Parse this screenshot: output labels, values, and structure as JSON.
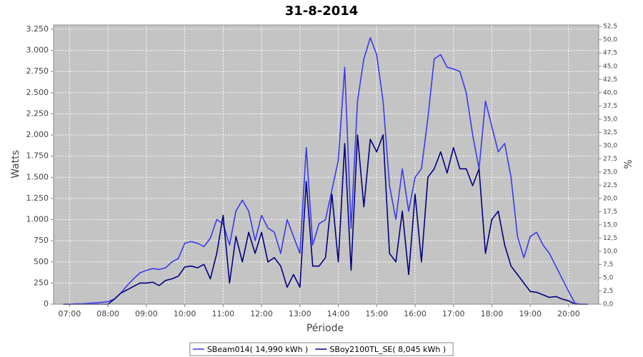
{
  "chart_data": {
    "type": "line",
    "title": "31-8-2014",
    "x_label": "Période",
    "y_label": "Watts",
    "y2_label": "%",
    "x": [
      "06:50",
      "07:00",
      "07:10",
      "07:20",
      "07:30",
      "07:40",
      "07:50",
      "08:00",
      "08:10",
      "08:20",
      "08:30",
      "08:40",
      "08:50",
      "09:00",
      "09:10",
      "09:20",
      "09:30",
      "09:40",
      "09:50",
      "10:00",
      "10:10",
      "10:20",
      "10:30",
      "10:40",
      "10:50",
      "11:00",
      "11:10",
      "11:20",
      "11:30",
      "11:40",
      "11:50",
      "12:00",
      "12:10",
      "12:20",
      "12:30",
      "12:40",
      "12:50",
      "13:00",
      "13:10",
      "13:20",
      "13:30",
      "13:40",
      "13:50",
      "14:00",
      "14:10",
      "14:20",
      "14:30",
      "14:40",
      "14:50",
      "15:00",
      "15:10",
      "15:20",
      "15:30",
      "15:40",
      "15:50",
      "16:00",
      "16:10",
      "16:20",
      "16:30",
      "16:40",
      "16:50",
      "17:00",
      "17:10",
      "17:20",
      "17:30",
      "17:40",
      "17:50",
      "18:00",
      "18:10",
      "18:20",
      "18:30",
      "18:40",
      "18:50",
      "19:00",
      "19:10",
      "19:20",
      "19:30",
      "19:40",
      "19:50",
      "20:00",
      "20:10",
      "20:20",
      "20:30"
    ],
    "series": [
      {
        "name": "SBeam014( 14,990 kWh )",
        "color": "#3a3aee",
        "values": [
          0,
          0,
          5,
          5,
          10,
          15,
          20,
          30,
          60,
          130,
          220,
          300,
          370,
          400,
          420,
          410,
          430,
          500,
          540,
          720,
          740,
          720,
          680,
          780,
          1000,
          950,
          700,
          1100,
          1230,
          1100,
          750,
          1050,
          900,
          850,
          600,
          1000,
          800,
          600,
          1850,
          700,
          950,
          1000,
          1350,
          1700,
          2800,
          900,
          2400,
          2900,
          3150,
          2950,
          2400,
          1400,
          1000,
          1600,
          1100,
          1500,
          1600,
          2200,
          2900,
          2950,
          2800,
          2780,
          2750,
          2500,
          2000,
          1600,
          2400,
          2100,
          1800,
          1900,
          1500,
          800,
          550,
          800,
          850,
          700,
          600,
          450,
          300,
          150,
          10,
          0,
          0
        ]
      },
      {
        "name": "SBoy2100TL_SE( 8,045 kWh )",
        "color": "#000080",
        "values": [
          0,
          0,
          0,
          0,
          0,
          0,
          0,
          0,
          60,
          130,
          170,
          210,
          250,
          250,
          260,
          220,
          280,
          300,
          330,
          440,
          450,
          430,
          470,
          300,
          600,
          1050,
          250,
          800,
          500,
          850,
          600,
          850,
          500,
          550,
          450,
          200,
          350,
          200,
          1450,
          450,
          450,
          550,
          1300,
          500,
          1900,
          400,
          2000,
          1150,
          1950,
          1800,
          2000,
          600,
          500,
          1100,
          350,
          1300,
          500,
          1500,
          1600,
          1800,
          1550,
          1850,
          1600,
          1600,
          1400,
          1600,
          600,
          1000,
          1100,
          700,
          450,
          350,
          250,
          150,
          140,
          110,
          80,
          90,
          60,
          40,
          0,
          0,
          0
        ]
      }
    ],
    "xlim": [
      "06:35",
      "20:47"
    ],
    "xticks": [
      "07:00",
      "08:00",
      "09:00",
      "10:00",
      "11:00",
      "12:00",
      "13:00",
      "14:00",
      "15:00",
      "16:00",
      "17:00",
      "18:00",
      "19:00",
      "20:00"
    ],
    "ylim": [
      0,
      3300
    ],
    "yticks": [
      0,
      250,
      500,
      750,
      {
        "value": 1000,
        "label": "1.000"
      },
      {
        "value": 1250,
        "label": "1.250"
      },
      {
        "value": 1500,
        "label": "1.500"
      },
      {
        "value": 1750,
        "label": "1.750"
      },
      {
        "value": 2000,
        "label": "2.000"
      },
      {
        "value": 2250,
        "label": "2.250"
      },
      {
        "value": 2500,
        "label": "2.500"
      },
      {
        "value": 2750,
        "label": "2.750"
      },
      {
        "value": 3000,
        "label": "3.000"
      },
      {
        "value": 3250,
        "label": "3.250"
      }
    ],
    "y2lim": [
      0,
      52.8
    ],
    "y2ticks": [
      {
        "value": 0,
        "label": "0,0"
      },
      {
        "value": 2.5,
        "label": "2,5"
      },
      {
        "value": 5,
        "label": "5,0"
      },
      {
        "value": 7.5,
        "label": "7,5"
      },
      {
        "value": 10,
        "label": "10,0"
      },
      {
        "value": 12.5,
        "label": "12,5"
      },
      {
        "value": 15,
        "label": "15,0"
      },
      {
        "value": 17.5,
        "label": "17,5"
      },
      {
        "value": 20,
        "label": "20,0"
      },
      {
        "value": 22.5,
        "label": "22,5"
      },
      {
        "value": 25,
        "label": "25,0"
      },
      {
        "value": 27.5,
        "label": "27,5"
      },
      {
        "value": 30,
        "label": "30,0"
      },
      {
        "value": 32.5,
        "label": "32,5"
      },
      {
        "value": 35,
        "label": "35,0"
      },
      {
        "value": 37.5,
        "label": "37,5"
      },
      {
        "value": 40,
        "label": "40,0"
      },
      {
        "value": 42.5,
        "label": "42,5"
      },
      {
        "value": 45,
        "label": "45,0"
      },
      {
        "value": 47.5,
        "label": "47,5"
      },
      {
        "value": 50,
        "label": "50,0"
      },
      {
        "value": 52.5,
        "label": "52,5"
      }
    ],
    "grid": true,
    "plot_background": "#c4c4c4",
    "legend_position": "bottom"
  }
}
